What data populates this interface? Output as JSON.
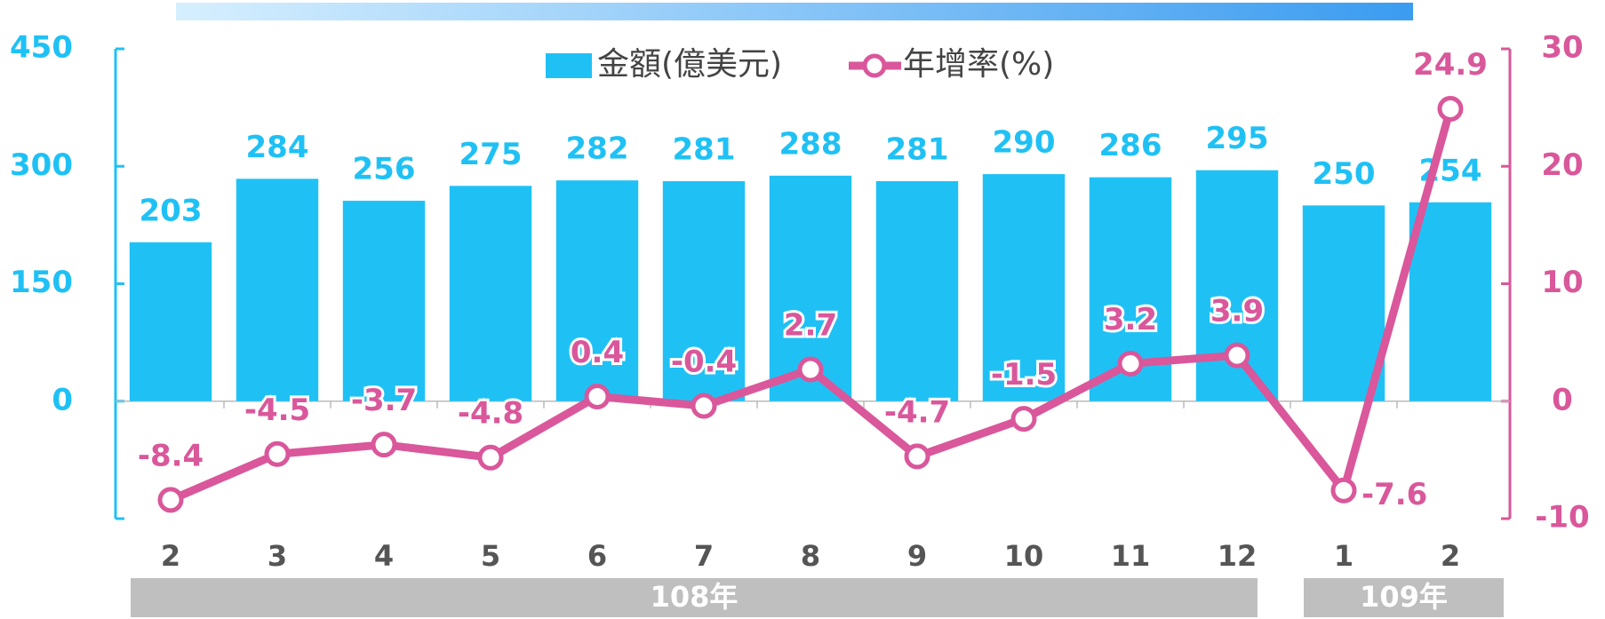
{
  "chart_data": {
    "type": "bar-line",
    "categories": [
      "2",
      "3",
      "4",
      "5",
      "6",
      "7",
      "8",
      "9",
      "10",
      "11",
      "12",
      "1",
      "2"
    ],
    "groups": [
      {
        "label": "108年",
        "span": 11
      },
      {
        "label": "109年",
        "span": 2
      }
    ],
    "series": [
      {
        "name": "金額(億美元)",
        "type": "bar",
        "color": "#1fc1f5",
        "axis": "y",
        "values": [
          203,
          284,
          256,
          275,
          282,
          281,
          288,
          281,
          290,
          286,
          295,
          250,
          254
        ]
      },
      {
        "name": "年增率(%)",
        "type": "line",
        "color": "#d9579a",
        "axis": "y2",
        "values": [
          -8.4,
          -4.5,
          -3.7,
          -4.8,
          0.4,
          -0.4,
          2.7,
          -4.7,
          -1.5,
          3.2,
          3.9,
          -7.6,
          24.9
        ]
      }
    ],
    "ylim": [
      -150,
      450
    ],
    "yticks": [
      0,
      150,
      300,
      450
    ],
    "y2lim": [
      -10,
      30
    ],
    "y2ticks": [
      -10,
      0,
      10,
      20,
      30
    ]
  }
}
